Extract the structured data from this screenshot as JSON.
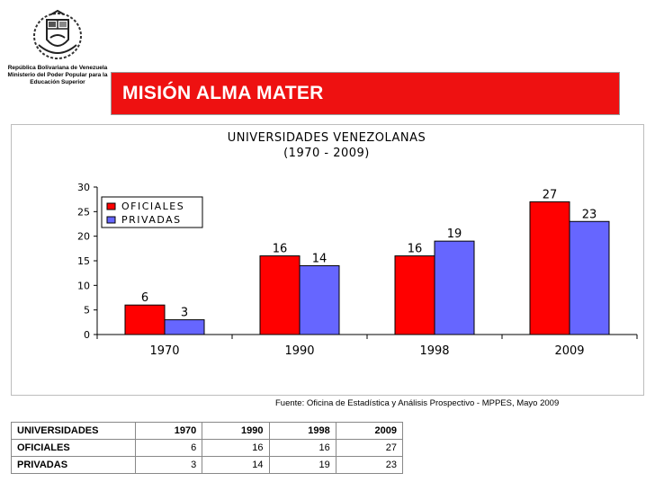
{
  "header": {
    "institution_lines": [
      "República Bolivariana de Venezuela",
      "Ministerio del Poder Popular para la",
      "Educación Superior"
    ],
    "banner_title": "MISIÓN ALMA MATER",
    "banner_color": "#ee1111",
    "logo_icon": "coat-of-arms-icon"
  },
  "chart_data": {
    "type": "bar",
    "title": "UNIVERSIDADES VENEZOLANAS",
    "subtitle": "(1970 - 2009)",
    "categories": [
      "1970",
      "1990",
      "1998",
      "2009"
    ],
    "series": [
      {
        "name": "OFICIALES",
        "values": [
          6,
          16,
          16,
          27
        ],
        "color": "#ff0000"
      },
      {
        "name": "PRIVADAS",
        "values": [
          3,
          14,
          19,
          23
        ],
        "color": "#6666ff"
      }
    ],
    "ylim": [
      0,
      30
    ],
    "yticks": [
      0,
      5,
      10,
      15,
      20,
      25,
      30
    ],
    "xlabel": "",
    "ylabel": "",
    "grid": false,
    "legend_position": "top-left",
    "data_labels": true
  },
  "source_text": "Fuente: Oficina de Estadística y Análisis Prospectivo - MPPES, Mayo 2009",
  "table": {
    "header": [
      "UNIVERSIDADES",
      "1970",
      "1990",
      "1998",
      "2009"
    ],
    "rows": [
      [
        "OFICIALES",
        "6",
        "16",
        "16",
        "27"
      ],
      [
        "PRIVADAS",
        "3",
        "14",
        "19",
        "23"
      ]
    ]
  }
}
